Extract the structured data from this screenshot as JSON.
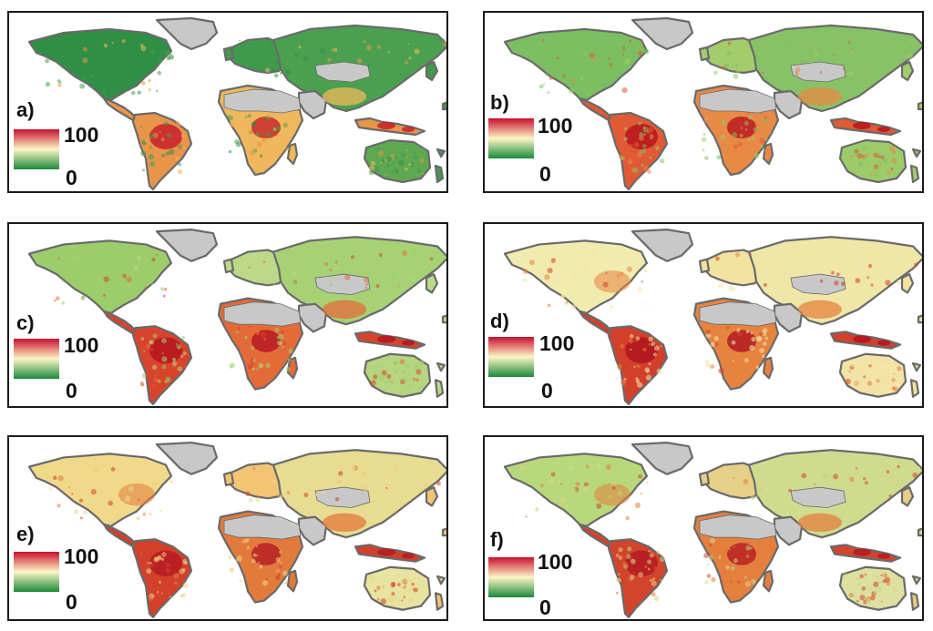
{
  "panels": [
    {
      "label": "a)",
      "scale_max": "100",
      "scale_min": "0",
      "character": "green-dominant"
    },
    {
      "label": "b)",
      "scale_max": "100",
      "scale_min": "0",
      "character": "mixed-green"
    },
    {
      "label": "c)",
      "scale_max": "100",
      "scale_min": "0",
      "character": "tropics-red"
    },
    {
      "label": "d)",
      "scale_max": "100",
      "scale_min": "0",
      "character": "pale-yellow"
    },
    {
      "label": "e)",
      "scale_max": "100",
      "scale_min": "0",
      "character": "orange-warm"
    },
    {
      "label": "f)",
      "scale_max": "100",
      "scale_min": "0",
      "character": "mixed-warm"
    }
  ],
  "colorbar": {
    "low_color": "#1a8a3a",
    "mid_color": "#fdf6c6",
    "high_color": "#c8102e"
  },
  "no_data_color": "#c8c8c8",
  "coastline_color": "#6a6a6a"
}
